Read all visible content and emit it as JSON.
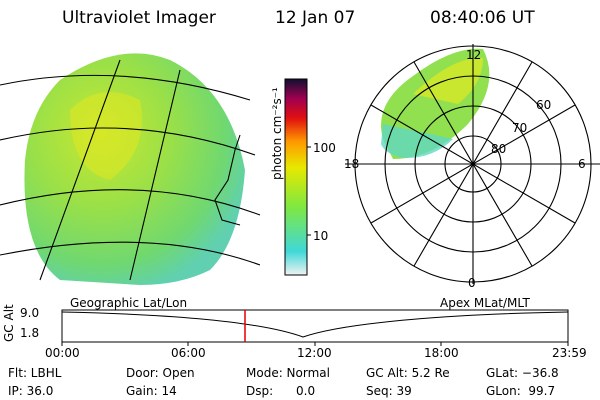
{
  "header": {
    "instrument": "Ultraviolet Imager",
    "date": "12 Jan 07",
    "time": "08:40:06 UT"
  },
  "colorbar": {
    "unit_label": "photon cm⁻²s⁻¹",
    "ticks": [
      "100",
      "10"
    ],
    "colors": [
      "#f2f2f2",
      "#40d8d8",
      "#80e840",
      "#e8e800",
      "#ff9900",
      "#e01010",
      "#a00050",
      "#101030"
    ]
  },
  "polar_plot": {
    "mlt_labels": [
      "12",
      "18",
      "6",
      "0"
    ],
    "lat_labels": [
      "60",
      "70",
      "80"
    ]
  },
  "timeline": {
    "left_label": "Geographic Lat/Lon",
    "right_label": "Apex MLat/MLT",
    "axis_label": "GC Alt",
    "y_ticks": [
      "9.0",
      "1.8"
    ],
    "x_ticks": [
      "00:00",
      "06:00",
      "12:00",
      "18:00",
      "23:59"
    ],
    "current_time_marker": "08:40:06"
  },
  "status": {
    "filter": "Flt: LBHL",
    "ip": "IP: 36.0",
    "door": "Door: Open",
    "gain": "Gain: 14",
    "mode": "Mode: Normal",
    "dsp": "Dsp:      0.0",
    "gc_alt": "GC Alt: 5.2 Re",
    "seq": "Seq: 39",
    "glat": "GLat: −36.8",
    "glon": "GLon:  99.7"
  }
}
